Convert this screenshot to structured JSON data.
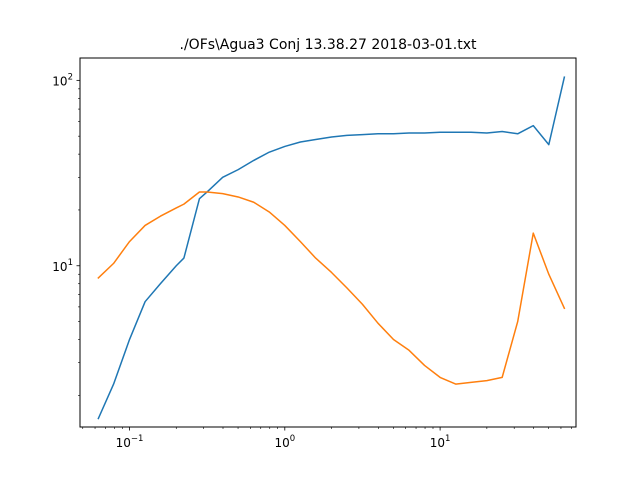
{
  "chart_data": {
    "type": "line",
    "title": "./OFs\\Agua3 Conj   13.38.27 2018-03-01.txt",
    "xlabel": "",
    "ylabel": "",
    "xscale": "log",
    "yscale": "log",
    "xlim": [
      0.048,
      75
    ],
    "ylim": [
      1.35,
      132
    ],
    "grid": false,
    "x_ticks": [
      {
        "base": "10",
        "exp": "−1",
        "value": 0.1
      },
      {
        "base": "10",
        "exp": "0",
        "value": 1
      },
      {
        "base": "10",
        "exp": "1",
        "value": 10
      }
    ],
    "y_ticks": [
      {
        "base": "10",
        "exp": "1",
        "value": 10
      },
      {
        "base": "10",
        "exp": "2",
        "value": 100
      }
    ],
    "x": [
      0.063,
      0.079,
      0.1,
      0.126,
      0.158,
      0.2,
      0.224,
      0.282,
      0.316,
      0.398,
      0.501,
      0.631,
      0.794,
      1.0,
      1.26,
      1.58,
      2.0,
      2.51,
      3.16,
      3.98,
      5.01,
      6.31,
      7.94,
      10.0,
      12.6,
      15.8,
      20.0,
      25.1,
      31.6,
      39.8,
      50.1,
      63.1
    ],
    "series": [
      {
        "color": "#1f77b4",
        "values": [
          1.5,
          2.3,
          4.0,
          6.4,
          8.0,
          10.0,
          11.0,
          23.0,
          25.0,
          30.0,
          33.0,
          37.0,
          41.0,
          44.0,
          46.5,
          48.0,
          49.5,
          50.5,
          51.0,
          51.5,
          51.5,
          52.0,
          52.0,
          52.5,
          52.5,
          52.5,
          52.0,
          53.0,
          51.5,
          57.0,
          45.0,
          104.0
        ]
      },
      {
        "color": "#ff7f0e",
        "values": [
          8.6,
          10.3,
          13.5,
          16.5,
          18.5,
          20.5,
          21.5,
          25.0,
          25.0,
          24.5,
          23.5,
          22.0,
          19.5,
          16.5,
          13.5,
          11.0,
          9.2,
          7.6,
          6.2,
          4.9,
          4.0,
          3.5,
          2.9,
          2.5,
          2.3,
          2.35,
          2.4,
          2.5,
          5.0,
          15.0,
          9.0,
          5.9
        ]
      }
    ]
  }
}
